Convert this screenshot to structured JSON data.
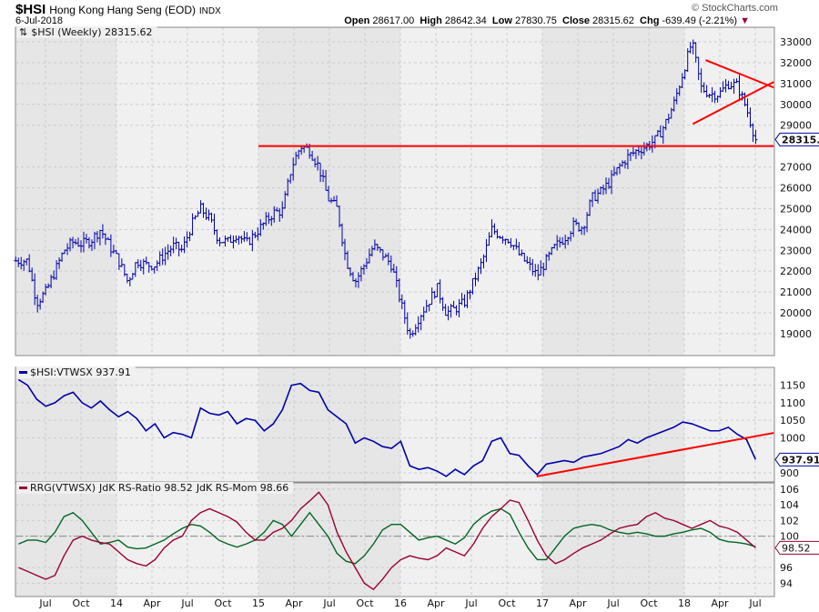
{
  "header": {
    "symbol": "$HSI",
    "name": "Hong Kong Hang Seng (EOD)",
    "exchange": "INDX",
    "date": "6-Jul-2018",
    "watermark": "© StockCharts.com",
    "open_label": "Open",
    "open": "28617.00",
    "high_label": "High",
    "high": "28642.34",
    "low_label": "Low",
    "low": "27830.75",
    "close_label": "Close",
    "close": "28315.62",
    "chg_label": "Chg",
    "chg": "-639.49 (-2.21%)"
  },
  "colors": {
    "price": "#0000aa",
    "trend": "#ff0000",
    "rs_ratio": "#990033",
    "rs_mom": "#006622",
    "ratio": "#0000aa"
  },
  "chart_data": [
    {
      "type": "line",
      "title": "$HSI (Weekly) 28315.62",
      "panel": "price",
      "style": "ohlc-bars",
      "t_start": 2013.31,
      "t_step_years": 0.0641,
      "values": [
        22500,
        22500,
        20500,
        21000,
        22000,
        23000,
        23400,
        23300,
        23500,
        24000,
        23200,
        22500,
        21500,
        22500,
        22300,
        22300,
        22800,
        23200,
        23000,
        24200,
        25000,
        24500,
        23500,
        23400,
        23800,
        23300,
        23800,
        24300,
        24800,
        24900,
        27000,
        28000,
        27800,
        27000,
        25500,
        25000,
        22500,
        21500,
        22300,
        23200,
        22800,
        22300,
        20500,
        18900,
        19800,
        20500,
        21200,
        20000,
        20200,
        20500,
        21500,
        22500,
        24000,
        23700,
        23500,
        22800,
        22300,
        21800,
        22500,
        23200,
        23600,
        24200,
        24100,
        25500,
        25800,
        26300,
        27000,
        27500,
        27800,
        28000,
        28300,
        29000,
        30000,
        31500,
        33000,
        30800,
        30500,
        30500,
        31000,
        30900,
        29800,
        28316
      ],
      "last_value": "28315.62",
      "ylim": [
        17950,
        33700
      ],
      "yticks": [
        "19000",
        "20000",
        "21000",
        "22000",
        "23000",
        "24000",
        "25000",
        "26000",
        "27000",
        "29000",
        "30000",
        "31000",
        "32000",
        "33000"
      ],
      "annotations": [
        {
          "type": "hline",
          "value": 28000,
          "t_from": 2015.0,
          "t_to": 2018.63
        },
        {
          "type": "segment",
          "t1": 2018.15,
          "v1": 32125,
          "t2": 2018.63,
          "v2": 30810
        },
        {
          "type": "segment",
          "t1": 2018.06,
          "v1": 29063,
          "t2": 2018.63,
          "v2": 31075
        }
      ]
    },
    {
      "type": "line",
      "title": "$HSI:VTWSX 937.91",
      "panel": "ratio",
      "t_start": 2013.31,
      "t_step_years": 0.0641,
      "values": [
        1166,
        1150,
        1110,
        1090,
        1100,
        1120,
        1130,
        1100,
        1085,
        1105,
        1080,
        1060,
        1075,
        1055,
        1020,
        1040,
        1000,
        1015,
        1010,
        1000,
        1085,
        1070,
        1065,
        1075,
        1040,
        1055,
        1050,
        1020,
        1040,
        1080,
        1150,
        1155,
        1135,
        1130,
        1080,
        1060,
        1040,
        985,
        1000,
        990,
        975,
        970,
        990,
        920,
        910,
        915,
        905,
        890,
        910,
        895,
        920,
        935,
        990,
        1000,
        955,
        950,
        920,
        895,
        925,
        930,
        935,
        930,
        945,
        950,
        955,
        965,
        975,
        995,
        985,
        1000,
        1010,
        1020,
        1030,
        1045,
        1040,
        1030,
        1020,
        1020,
        1030,
        1010,
        995,
        938
      ],
      "last_value": "937.91",
      "ylim": [
        874,
        1201
      ],
      "yticks": [
        "900",
        "1000",
        "1050",
        "1100",
        "1150"
      ],
      "annotations": [
        {
          "type": "segment",
          "t1": 2016.96,
          "v1": 890,
          "t2": 2018.63,
          "v2": 1014
        }
      ]
    },
    {
      "type": "line",
      "title": "RRG(VTWSX)",
      "panel": "rrg",
      "t_start": 2013.31,
      "t_step_years": 0.0641,
      "series": [
        {
          "name": "JdK RS-Ratio 98.52",
          "color_key": "rs_ratio",
          "values": [
            96,
            95.5,
            95,
            94.5,
            95,
            97.5,
            99.5,
            100,
            99.5,
            99.2,
            99,
            98,
            97,
            96.5,
            96.2,
            97,
            98.5,
            99.5,
            100,
            102,
            103,
            103.5,
            103,
            102.5,
            101.8,
            100.5,
            99.5,
            99.5,
            100.5,
            101,
            102,
            103.5,
            104.5,
            105.6,
            104,
            100.5,
            98,
            96,
            94,
            93.2,
            94.5,
            96,
            97,
            97.5,
            97.2,
            97,
            97.5,
            98.5,
            98,
            97.5,
            99,
            101,
            102.5,
            103.5,
            104.6,
            104.3,
            102,
            99.5,
            97.5,
            96.5,
            97,
            97.8,
            98.5,
            99,
            99.5,
            100.3,
            101,
            101.3,
            101.5,
            102.5,
            103,
            102.3,
            102,
            101.5,
            101,
            101.5,
            102,
            101.3,
            101,
            100.5,
            99.5,
            98.52
          ]
        },
        {
          "name": "JdK RS-Mom 98.66",
          "color_key": "rs_mom",
          "values": [
            99,
            99.5,
            99.5,
            99.2,
            100.5,
            102.5,
            103,
            102,
            100.5,
            99,
            99.2,
            99.5,
            98.6,
            98.4,
            98.5,
            99,
            99.5,
            100.3,
            101,
            101.5,
            101.3,
            100.5,
            99.5,
            99,
            98.6,
            99,
            99.5,
            100.5,
            102,
            101.5,
            100,
            101.5,
            103,
            101.5,
            100,
            97.8,
            96.8,
            96.5,
            97.5,
            99,
            100.8,
            101.5,
            101.5,
            100.5,
            99.5,
            99.8,
            100,
            99.5,
            99,
            99.8,
            101.5,
            102.5,
            103.2,
            103.5,
            102.8,
            100.5,
            98.5,
            97,
            97,
            98.5,
            100,
            101,
            101.3,
            101.5,
            101.3,
            100.8,
            100.5,
            100.3,
            100.5,
            100.3,
            100,
            100,
            100.3,
            100.5,
            100.8,
            101,
            100.5,
            99.6,
            99.3,
            99.2,
            99,
            98.66
          ]
        }
      ],
      "last_value": "98.52",
      "ylim": [
        92.3,
        106.8
      ],
      "yticks": [
        "94",
        "96",
        "100",
        "102",
        "104",
        "106"
      ],
      "reference_line": 100
    }
  ],
  "xaxis": {
    "ticks": [
      {
        "t": 2013.5,
        "label": "Jul"
      },
      {
        "t": 2013.75,
        "label": "Oct"
      },
      {
        "t": 2014.0,
        "label": "14"
      },
      {
        "t": 2014.25,
        "label": "Apr"
      },
      {
        "t": 2014.5,
        "label": "Jul"
      },
      {
        "t": 2014.75,
        "label": "Oct"
      },
      {
        "t": 2015.0,
        "label": "15"
      },
      {
        "t": 2015.25,
        "label": "Apr"
      },
      {
        "t": 2015.5,
        "label": "Jul"
      },
      {
        "t": 2015.75,
        "label": "Oct"
      },
      {
        "t": 2016.0,
        "label": "16"
      },
      {
        "t": 2016.25,
        "label": "Apr"
      },
      {
        "t": 2016.5,
        "label": "Jul"
      },
      {
        "t": 2016.75,
        "label": "Oct"
      },
      {
        "t": 2017.0,
        "label": "17"
      },
      {
        "t": 2017.25,
        "label": "Apr"
      },
      {
        "t": 2017.5,
        "label": "Jul"
      },
      {
        "t": 2017.75,
        "label": "Oct"
      },
      {
        "t": 2018.0,
        "label": "18"
      },
      {
        "t": 2018.25,
        "label": "Apr"
      },
      {
        "t": 2018.5,
        "label": "Jul"
      }
    ]
  }
}
